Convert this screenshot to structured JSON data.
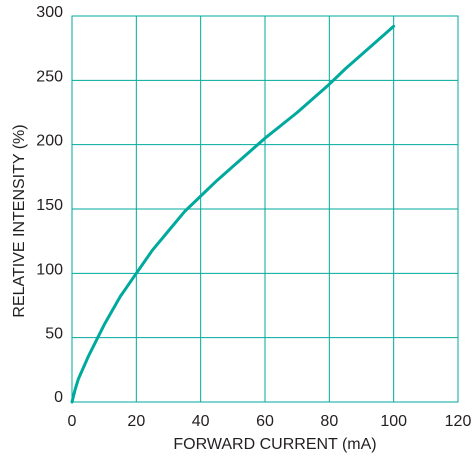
{
  "chart_data": {
    "type": "line",
    "title": "",
    "xlabel": "FORWARD CURRENT (mA)",
    "ylabel": "RELATIVE INTENSITY (%)",
    "xlim": [
      0,
      120
    ],
    "ylim": [
      0,
      300
    ],
    "x_ticks": [
      0,
      20,
      40,
      60,
      80,
      100,
      120
    ],
    "y_ticks": [
      0,
      50,
      100,
      150,
      200,
      250,
      300
    ],
    "grid": true,
    "color": "#00a99d",
    "series": [
      {
        "x": [
          0,
          1,
          2,
          5,
          10,
          15,
          20,
          25,
          30,
          35,
          40,
          45,
          50,
          55,
          60,
          65,
          70,
          75,
          80,
          85,
          90,
          95,
          100
        ],
        "y": [
          0,
          10,
          18,
          35,
          60,
          82,
          100,
          118,
          133,
          148,
          160,
          172,
          183,
          194,
          205,
          215,
          225,
          236,
          247,
          259,
          270,
          281,
          292
        ]
      }
    ]
  }
}
